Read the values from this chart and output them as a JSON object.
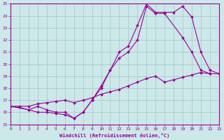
{
  "xlabel": "Windchill (Refroidissement éolien,°C)",
  "bg_color": "#cce8e8",
  "grid_color": "#aacccc",
  "line_color": "#990099",
  "xmin": 0,
  "xmax": 23,
  "ymin": 15,
  "ymax": 25,
  "line1_x": [
    0,
    1,
    2,
    3,
    4,
    5,
    6,
    7,
    8,
    9,
    10,
    11,
    12,
    13,
    14,
    15,
    16,
    17,
    19,
    20,
    21,
    22
  ],
  "line1_y": [
    16.5,
    16.4,
    16.2,
    16.5,
    16.2,
    16.0,
    16.0,
    15.5,
    16.0,
    17.0,
    18.0,
    19.5,
    20.5,
    21.0,
    22.0,
    24.8,
    24.2,
    24.2,
    22.2,
    21.0,
    19.5,
    19.2
  ],
  "line2_x": [
    0,
    1,
    2,
    3,
    4,
    5,
    6,
    7,
    8,
    9,
    10,
    11,
    12,
    13,
    14,
    15,
    16,
    17,
    18,
    19,
    20,
    21,
    22,
    23
  ],
  "line2_y": [
    16.5,
    16.5,
    16.5,
    16.7,
    16.8,
    16.9,
    17.0,
    16.8,
    17.0,
    17.2,
    17.5,
    17.7,
    17.9,
    18.2,
    18.5,
    18.8,
    19.0,
    18.5,
    18.7,
    18.9,
    19.1,
    19.3,
    19.2,
    19.2
  ],
  "line3_x": [
    0,
    2,
    3,
    4,
    5,
    6,
    7,
    8,
    9,
    10,
    11,
    12,
    13,
    14,
    15,
    16,
    17,
    18,
    19,
    20,
    21,
    22,
    23
  ],
  "line3_y": [
    16.5,
    16.2,
    16.0,
    16.0,
    15.9,
    15.8,
    15.5,
    16.0,
    17.0,
    18.2,
    19.5,
    21.0,
    21.5,
    23.2,
    25.0,
    24.3,
    24.3,
    24.3,
    24.8,
    23.9,
    21.0,
    19.5,
    19.2
  ]
}
